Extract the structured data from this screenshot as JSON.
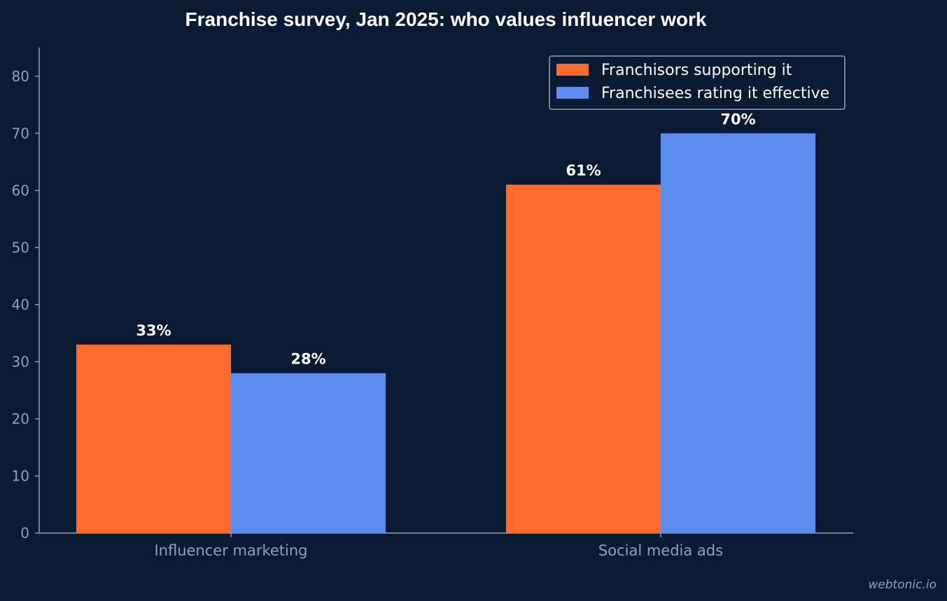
{
  "chart_data": {
    "type": "bar",
    "title": "Franchise survey, Jan 2025: who values influencer work",
    "categories": [
      "Influencer marketing",
      "Social media ads"
    ],
    "series": [
      {
        "name": "Franchisors supporting it",
        "values": [
          33,
          61
        ],
        "labels": [
          "33%",
          "61%"
        ],
        "color": "#ff6b2d"
      },
      {
        "name": "Franchisees rating it effective",
        "values": [
          28,
          70
        ],
        "labels": [
          "28%",
          "70%"
        ],
        "color": "#5b8def"
      }
    ],
    "ylim": [
      0,
      85
    ],
    "yticks": [
      0,
      10,
      20,
      30,
      40,
      50,
      60,
      70,
      80
    ],
    "xlabel": "",
    "ylabel": "",
    "grid": false,
    "legend_position": "top-right"
  },
  "watermark": "webtonic.io",
  "colors": {
    "background": "#0b1a33",
    "axis": "#8fa1bf",
    "text": "#ffffff"
  }
}
